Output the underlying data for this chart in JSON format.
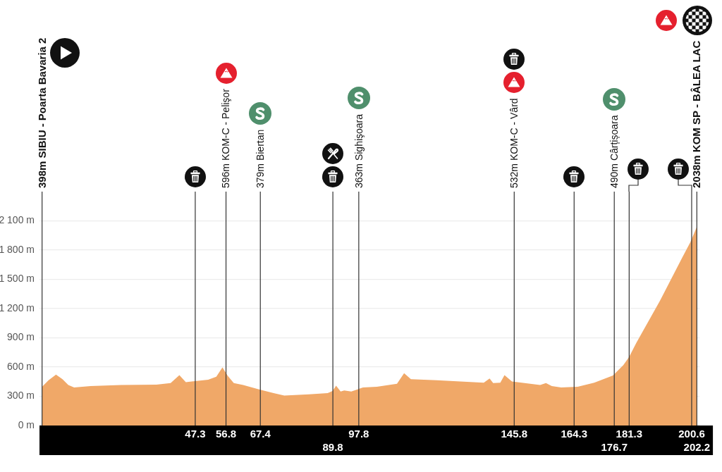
{
  "chart_data": {
    "type": "area",
    "x": [
      0,
      2.0,
      4.3,
      6.3,
      8.1,
      9.9,
      15.0,
      24.4,
      35.3,
      39.7,
      42.4,
      44.4,
      46.2,
      51.3,
      53.8,
      55.7,
      57.3,
      59.2,
      62.1,
      67.2,
      71.5,
      74.8,
      82.4,
      88.2,
      89.7,
      90.8,
      92.2,
      93.3,
      95.5,
      99.1,
      103.4,
      109.6,
      111.8,
      113.9,
      121.9,
      136.4,
      138.2,
      139.3,
      141.5,
      142.8,
      145.1,
      153.8,
      155.6,
      157.4,
      160.3,
      165.4,
      170.5,
      176.3,
      179.5,
      181.3,
      183.5,
      190.8,
      197.7,
      200.2,
      202.2
    ],
    "values": [
      398,
      464,
      523,
      476,
      415,
      391,
      404,
      415,
      420,
      435,
      516,
      444,
      451,
      469,
      500,
      596,
      512,
      435,
      415,
      368,
      332,
      307,
      319,
      332,
      355,
      408,
      348,
      360,
      348,
      391,
      397,
      428,
      536,
      476,
      464,
      440,
      483,
      435,
      440,
      516,
      451,
      415,
      435,
      404,
      391,
      397,
      440,
      514,
      620,
      704,
      848,
      1280,
      1725,
      1882,
      2038
    ],
    "color": "#f0a868",
    "xlim": [
      -0.8,
      203.0
    ],
    "xticks": [
      47.3,
      56.8,
      67.4,
      97.8,
      145.8,
      164.3,
      181.3,
      200.6
    ],
    "x2lim": [
      -0.8,
      203.0
    ],
    "x2ticks": [
      89.8,
      176.7,
      202.2
    ],
    "ylim": [
      0,
      2400
    ],
    "yticks": [
      {
        "value": 0,
        "label": "0 m"
      },
      {
        "value": 300,
        "label": "300 m"
      },
      {
        "value": 600,
        "label": "600 m"
      },
      {
        "value": 900,
        "label": "900 m"
      },
      {
        "value": 1200,
        "label": "1 200 m"
      },
      {
        "value": 1500,
        "label": "1 500 m"
      },
      {
        "value": 1800,
        "label": "1 800 m"
      },
      {
        "value": 2100,
        "label": "2 100 m"
      }
    ],
    "grid": "y",
    "legend": false,
    "ref_lines": [
      {
        "axis": "x",
        "value": 0,
        "label": "398m SIBIU - Poarta Bavaria 2"
      },
      {
        "axis": "x",
        "value": 47.3
      },
      {
        "axis": "x",
        "value": 56.8,
        "label": "596m KOM-C - Pelişor"
      },
      {
        "axis": "x",
        "value": 67.4,
        "label": "379m Biertan"
      },
      {
        "axis": "x",
        "value": 89.8
      },
      {
        "axis": "x",
        "value": 97.8,
        "label": "363m Sighişoara"
      },
      {
        "axis": "x",
        "value": 145.8,
        "label": "532m KOM-C - Vârd"
      },
      {
        "axis": "x",
        "value": 164.3
      },
      {
        "axis": "x",
        "value": 176.7,
        "label": "490m Cârțișoara"
      },
      {
        "axis": "x",
        "value": 181.3
      },
      {
        "axis": "x",
        "value": 200.6
      },
      {
        "axis": "x",
        "value": 202.2,
        "label": "2038m KOM SP - BÂLEA LAC"
      }
    ]
  }
}
